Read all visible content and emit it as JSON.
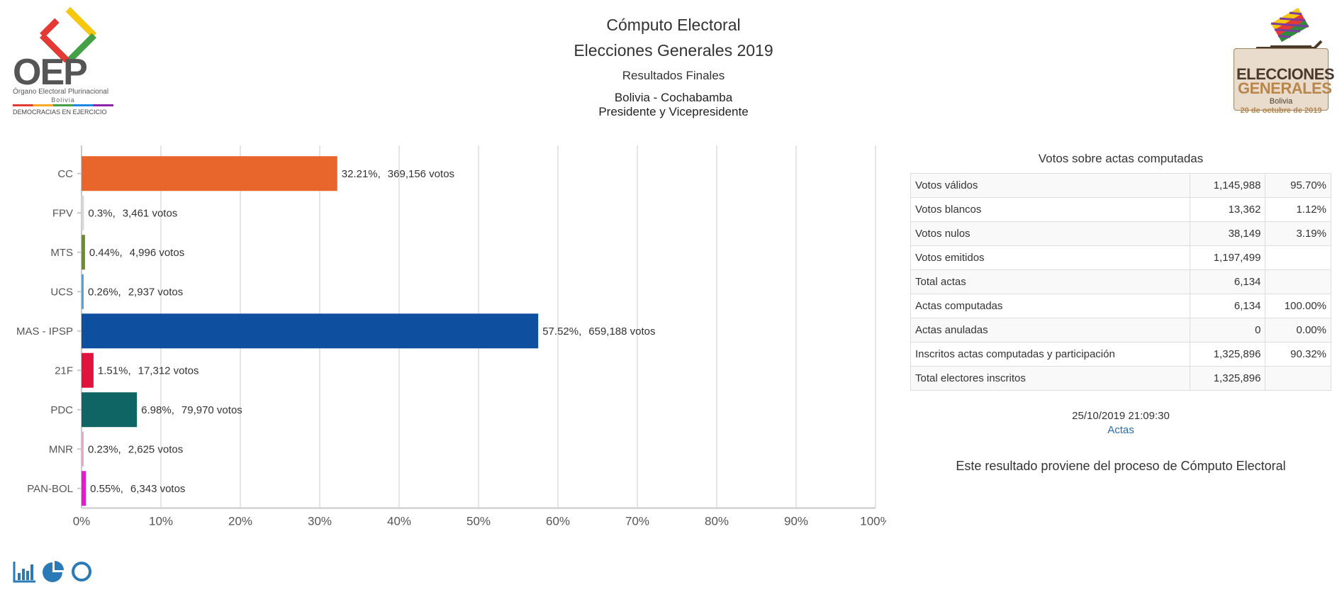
{
  "header": {
    "title": "Cómputo Electoral",
    "subtitle": "Elecciones Generales 2019",
    "status": "Resultados Finales",
    "location": "Bolivia - Cochabamba",
    "office": "Presidente y Vicepresidente"
  },
  "left_logo": {
    "letters": "OEP",
    "name": "Órgano Electoral Plurinacional",
    "country": "Bolivia",
    "tagline": "DEMOCRACIAS EN EJERCICIO",
    "icon": "oep-emblem"
  },
  "right_logo": {
    "line1": "ELECCIONES",
    "line2": "GENERALES",
    "country": "Bolivia",
    "date": "20 de octubre de 2019",
    "icon": "ballot-box-emblem"
  },
  "chart_data": {
    "type": "bar",
    "orientation": "horizontal",
    "categories": [
      "CC",
      "FPV",
      "MTS",
      "UCS",
      "MAS - IPSP",
      "21F",
      "PDC",
      "MNR",
      "PAN-BOL"
    ],
    "values": [
      32.21,
      0.3,
      0.44,
      0.26,
      57.52,
      1.51,
      6.98,
      0.23,
      0.55
    ],
    "value_labels": [
      "32.21%",
      "0.3%",
      "0.44%",
      "0.26%",
      "57.52%",
      "1.51%",
      "6.98%",
      "0.23%",
      "0.55%"
    ],
    "vote_labels": [
      "369,156 votos",
      "3,461 votos",
      "4,996 votos",
      "2,937 votos",
      "659,188 votos",
      "17,312 votos",
      "79,970 votos",
      "2,625 votos",
      "6,343 votos"
    ],
    "colors": [
      "#e8652b",
      "#d7d7d7",
      "#6e8e2a",
      "#4aa6e0",
      "#0f4fa0",
      "#e0143f",
      "#0f6464",
      "#e8a8c8",
      "#e617d6"
    ],
    "x_ticks": [
      "0%",
      "10%",
      "20%",
      "30%",
      "40%",
      "50%",
      "60%",
      "70%",
      "80%",
      "90%",
      "100%"
    ],
    "xlim": [
      0,
      100
    ],
    "grid": true,
    "title": "",
    "xlabel": "",
    "ylabel": ""
  },
  "votes_table": {
    "title": "Votos sobre actas computadas",
    "rows": [
      {
        "label": "Votos válidos",
        "count": "1,145,988",
        "pct": "95.70%"
      },
      {
        "label": "Votos blancos",
        "count": "13,362",
        "pct": "1.12%"
      },
      {
        "label": "Votos nulos",
        "count": "38,149",
        "pct": "3.19%"
      },
      {
        "label": "Votos emitidos",
        "count": "1,197,499",
        "pct": ""
      },
      {
        "label": "Total actas",
        "count": "6,134",
        "pct": ""
      },
      {
        "label": "Actas computadas",
        "count": "6,134",
        "pct": "100.00%"
      },
      {
        "label": "Actas anuladas",
        "count": "0",
        "pct": "0.00%"
      },
      {
        "label": "Inscritos actas computadas y participación",
        "count": "1,325,896",
        "pct": "90.32%"
      },
      {
        "label": "Total electores inscritos",
        "count": "1,325,896",
        "pct": ""
      }
    ],
    "timestamp": "25/10/2019 21:09:30",
    "link_label": "Actas",
    "note": "Este resultado proviene del proceso de Cómputo Electoral"
  },
  "chart_switch": {
    "icons": [
      "bar-chart-icon",
      "pie-chart-icon",
      "donut-chart-icon"
    ],
    "color": "#2a7ab8"
  }
}
